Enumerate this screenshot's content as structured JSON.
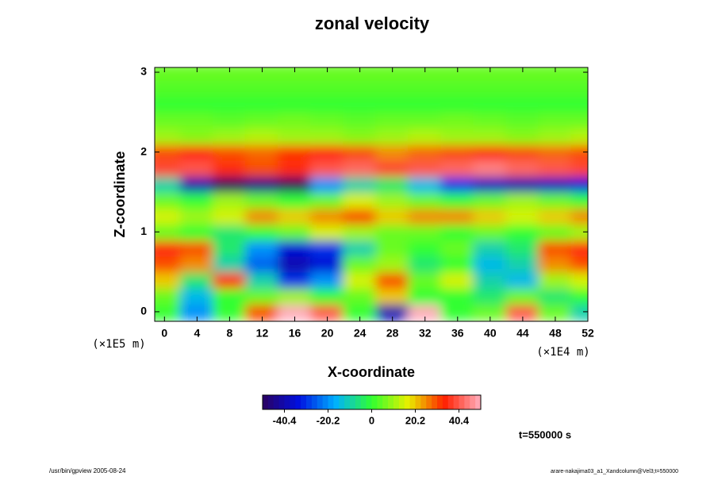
{
  "chart_data": {
    "type": "heatmap",
    "title": "zonal velocity",
    "x_label": "X-coordinate",
    "y_label": "Z-coordinate",
    "x_unit_label": "(×1E4 m)",
    "y_unit_label": "(×1E5 m)",
    "time_label": "t=550000 s",
    "footer_left": "/usr/bin/gpview 2005-08-24",
    "footer_right": "arare-nakajima03_a1_Xandcolumn@Vel3;t=550000",
    "x": [
      0,
      4,
      8,
      12,
      16,
      20,
      24,
      28,
      32,
      36,
      40,
      44,
      48,
      52
    ],
    "y": [
      0,
      0.2,
      0.4,
      0.6,
      0.8,
      1.0,
      1.2,
      1.4,
      1.6,
      1.8,
      2.0,
      2.2,
      2.4,
      2.6,
      2.8,
      3.0
    ],
    "values": [
      [
        0,
        -20,
        0,
        30,
        50,
        40,
        0,
        -40,
        50,
        0,
        5,
        40,
        5,
        -10
      ],
      [
        5,
        -15,
        0,
        5,
        10,
        0,
        5,
        20,
        0,
        0,
        -5,
        5,
        -5,
        0
      ],
      [
        20,
        -5,
        35,
        -10,
        -30,
        -20,
        15,
        30,
        5,
        15,
        -10,
        -15,
        10,
        15
      ],
      [
        30,
        25,
        -10,
        -25,
        -40,
        -35,
        5,
        10,
        -5,
        0,
        -15,
        -10,
        25,
        30
      ],
      [
        35,
        30,
        -5,
        -20,
        -35,
        -30,
        -10,
        5,
        0,
        5,
        -10,
        -5,
        30,
        35
      ],
      [
        5,
        0,
        -5,
        0,
        5,
        15,
        10,
        5,
        5,
        0,
        5,
        0,
        5,
        10
      ],
      [
        15,
        10,
        15,
        25,
        20,
        25,
        30,
        20,
        25,
        25,
        20,
        15,
        20,
        25
      ],
      [
        5,
        0,
        10,
        5,
        0,
        5,
        15,
        10,
        5,
        0,
        5,
        10,
        5,
        0
      ],
      [
        -10,
        -40,
        -50,
        -45,
        -50,
        -20,
        -10,
        -5,
        -15,
        -30,
        -38,
        -40,
        -38,
        -35
      ],
      [
        38,
        40,
        35,
        30,
        35,
        40,
        42,
        38,
        40,
        42,
        45,
        42,
        40,
        38
      ],
      [
        30,
        35,
        30,
        28,
        32,
        35,
        30,
        25,
        28,
        30,
        32,
        30,
        28,
        30
      ],
      [
        10,
        8,
        10,
        12,
        10,
        10,
        8,
        10,
        12,
        10,
        10,
        8,
        10,
        12
      ],
      [
        5,
        5,
        4,
        5,
        6,
        5,
        4,
        5,
        5,
        6,
        5,
        4,
        5,
        5
      ],
      [
        0,
        0,
        0,
        0,
        0,
        0,
        0,
        0,
        0,
        0,
        0,
        0,
        0,
        0
      ],
      [
        3,
        3,
        3,
        3,
        3,
        3,
        3,
        3,
        3,
        3,
        3,
        3,
        3,
        3
      ],
      [
        5,
        5,
        5,
        5,
        5,
        5,
        5,
        5,
        5,
        5,
        5,
        5,
        5,
        5
      ]
    ],
    "xlim": [
      -1.2,
      52
    ],
    "ylim": [
      -0.12,
      3.06
    ],
    "xticks": [
      0,
      4,
      8,
      12,
      16,
      20,
      24,
      28,
      32,
      36,
      40,
      44,
      48,
      52
    ],
    "yticks": [
      0,
      1,
      2,
      3
    ],
    "zlim": [
      -50.5,
      50.5
    ],
    "zticks": [
      -40.4,
      -20.2,
      0,
      20.2,
      40.4
    ],
    "colormap": [
      "#2a0060",
      "#0010e0",
      "#00b0ff",
      "#30ff30",
      "#e8f000",
      "#ff2000",
      "#ffb0c0"
    ]
  }
}
